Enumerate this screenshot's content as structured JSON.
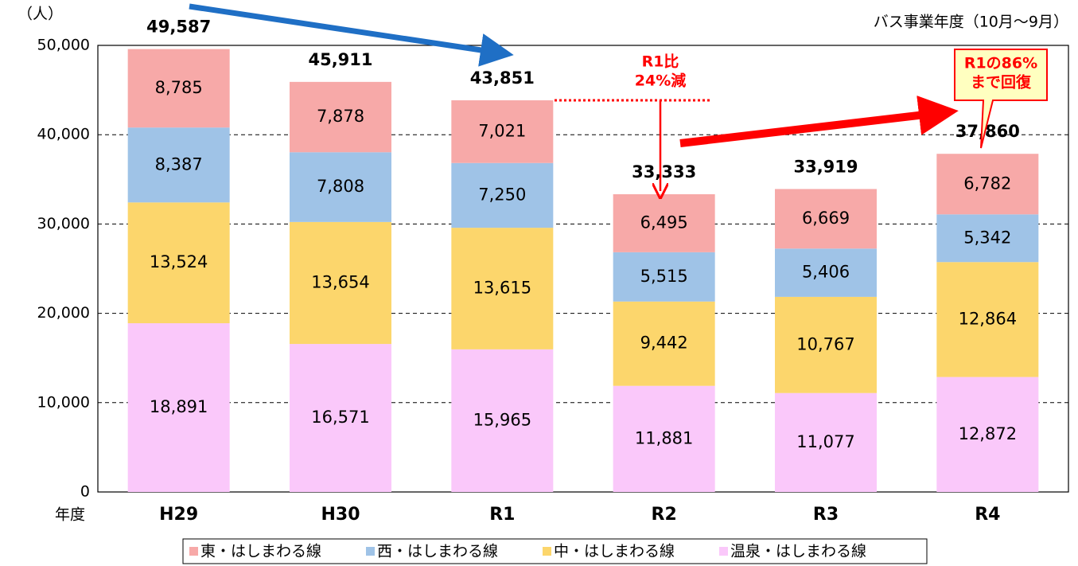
{
  "chart_data": {
    "type": "stacked_bar",
    "y_unit": "（人）",
    "x_label": "年度",
    "subtitle": "バス事業年度（10月〜9月）",
    "categories": [
      "H29",
      "H30",
      "R1",
      "R2",
      "R3",
      "R4"
    ],
    "series": [
      {
        "name": "温泉・はしまわる線",
        "color": "#fac8fa",
        "values": [
          18891,
          16571,
          15965,
          11881,
          11077,
          12872
        ],
        "value_labels": [
          "18,891",
          "16,571",
          "15,965",
          "11,881",
          "11,077",
          "12,872"
        ]
      },
      {
        "name": "中・はしまわる線",
        "color": "#fcd66c",
        "values": [
          13524,
          13654,
          13615,
          9442,
          10767,
          12864
        ],
        "value_labels": [
          "13,524",
          "13,654",
          "13,615",
          "9,442",
          "10,767",
          "12,864"
        ]
      },
      {
        "name": "西・はしまわる線",
        "color": "#9fc3e7",
        "values": [
          8387,
          7808,
          7250,
          5515,
          5406,
          5342
        ],
        "value_labels": [
          "8,387",
          "7,808",
          "7,250",
          "5,515",
          "5,406",
          "5,342"
        ]
      },
      {
        "name": "東・はしまわる線",
        "color": "#f7a9a8",
        "values": [
          8785,
          7878,
          7021,
          6495,
          6669,
          6782
        ],
        "value_labels": [
          "8,785",
          "7,878",
          "7,021",
          "6,495",
          "6,669",
          "6,782"
        ]
      }
    ],
    "totals": [
      49587,
      45911,
      43851,
      33333,
      33919,
      37860
    ],
    "total_labels": [
      "49,587",
      "45,911",
      "43,851",
      "33,333",
      "33,919",
      "37,860"
    ],
    "ylim": [
      0,
      50000
    ],
    "yticks": [
      0,
      {
        "value": 10000,
        "label": "10,000"
      },
      {
        "value": 20000,
        "label": "20,000"
      },
      {
        "value": 30000,
        "label": "30,000"
      },
      {
        "value": 40000,
        "label": "40,000"
      },
      {
        "value": 50000,
        "label": "50,000"
      }
    ],
    "grid": true,
    "annotations": [
      {
        "lines": [
          "R1比",
          "24%減"
        ]
      },
      {
        "lines": [
          "R1の86%",
          "まで回復"
        ]
      }
    ]
  }
}
